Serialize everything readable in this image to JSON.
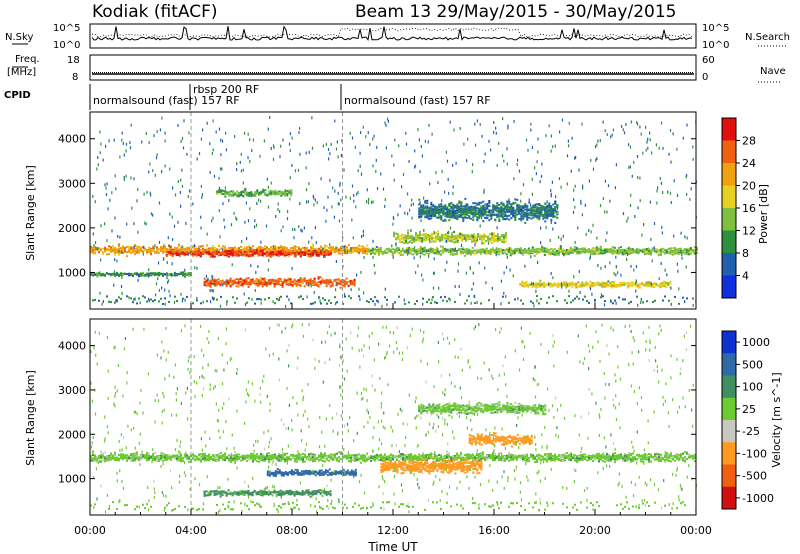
{
  "header": {
    "title": "Kodiak (fitACF)",
    "subtitle": "Beam 13 29/May/2015 - 30/May/2015"
  },
  "panels": {
    "nsky_label": "N.Sky",
    "nsearch_label": "N.Search",
    "counts_ticks": [
      "10^5",
      "10^0"
    ],
    "freq_label_1": "Freq.",
    "freq_label_2": "[MHz]",
    "freq_ticks": [
      "18",
      "8"
    ],
    "nave_label": "Nave",
    "nave_ticks": [
      "60",
      "0"
    ],
    "cpid_label": "CPID",
    "cpid_segments": [
      {
        "label": "normalsound (fast) 157 RF",
        "start_h": 0.0
      },
      {
        "label": "rbsp 200 RF",
        "start_h": 4.0
      },
      {
        "label": "normalsound (fast) 157 RF",
        "start_h": 10.0
      }
    ]
  },
  "axes": {
    "ylabel": "Slant Range [km]",
    "xlabel": "Time UT",
    "xticks": [
      "00:00",
      "04:00",
      "08:00",
      "12:00",
      "16:00",
      "20:00",
      "00:00"
    ],
    "yticks": [
      "1000",
      "2000",
      "3000",
      "4000"
    ]
  },
  "colorbars": {
    "power": {
      "label": "Power [dB]",
      "ticks": [
        "4",
        "8",
        "12",
        "16",
        "20",
        "24",
        "28"
      ],
      "colors": [
        "#1030e0",
        "#2060b0",
        "#2e8f3c",
        "#7ec040",
        "#e8d020",
        "#f0a010",
        "#f06010",
        "#e01010"
      ]
    },
    "velocity": {
      "label": "Velocity [m s^-1]",
      "ticks": [
        "1000",
        "500",
        "100",
        "25",
        "-25",
        "-100",
        "-500",
        "-1000"
      ],
      "colors": [
        "#1030d0",
        "#2f6aa8",
        "#3f8f60",
        "#6bcb2f",
        "#c8c8c0",
        "#ff9a20",
        "#f06010",
        "#d01010"
      ]
    }
  },
  "chart_data": [
    {
      "type": "heatmap",
      "title": "Power",
      "xlabel": "Time UT",
      "ylabel": "Slant Range [km]",
      "xlim": [
        0,
        24
      ],
      "ylim": [
        180,
        4600
      ],
      "colorbar": "Power [dB]",
      "clim": [
        0,
        30
      ],
      "features": [
        {
          "t0": 0.0,
          "t1": 11.0,
          "range_km": 1520,
          "width_km": 160,
          "power_db": 22
        },
        {
          "t0": 3.0,
          "t1": 9.5,
          "range_km": 1450,
          "width_km": 120,
          "power_db": 28
        },
        {
          "t0": 11.0,
          "t1": 24.0,
          "range_km": 1500,
          "width_km": 140,
          "power_db": 14
        },
        {
          "t0": 4.5,
          "t1": 10.5,
          "range_km": 800,
          "width_km": 160,
          "power_db": 26
        },
        {
          "t0": 0.0,
          "t1": 4.0,
          "range_km": 980,
          "width_km": 70,
          "power_db": 10
        },
        {
          "t0": 5.0,
          "t1": 8.0,
          "range_km": 2800,
          "width_km": 120,
          "power_db": 12
        },
        {
          "t0": 13.0,
          "t1": 18.5,
          "range_km": 2400,
          "width_km": 350,
          "power_db": 8
        },
        {
          "t0": 12.0,
          "t1": 16.5,
          "range_km": 1800,
          "width_km": 200,
          "power_db": 16
        },
        {
          "t0": 17.0,
          "t1": 23.0,
          "range_km": 750,
          "width_km": 110,
          "power_db": 18
        }
      ]
    },
    {
      "type": "heatmap",
      "title": "Velocity",
      "xlabel": "Time UT",
      "ylabel": "Slant Range [km]",
      "xlim": [
        0,
        24
      ],
      "ylim": [
        180,
        4600
      ],
      "colorbar": "Velocity [m s^-1]",
      "clim": [
        -1000,
        1000
      ],
      "features": [
        {
          "t0": 0.0,
          "t1": 24.0,
          "range_km": 1500,
          "width_km": 160,
          "velocity_ms": 0
        },
        {
          "t0": 4.5,
          "t1": 9.5,
          "range_km": 700,
          "width_km": 110,
          "velocity_ms": 50
        },
        {
          "t0": 7.0,
          "t1": 10.5,
          "range_km": 1150,
          "width_km": 110,
          "velocity_ms": 150
        },
        {
          "t0": 11.5,
          "t1": 15.5,
          "range_km": 1300,
          "width_km": 250,
          "velocity_ms": -300
        },
        {
          "t0": 15.0,
          "t1": 17.5,
          "range_km": 1900,
          "width_km": 200,
          "velocity_ms": -400
        },
        {
          "t0": 13.0,
          "t1": 18.0,
          "range_km": 2600,
          "width_km": 200,
          "velocity_ms": 0
        }
      ]
    }
  ]
}
